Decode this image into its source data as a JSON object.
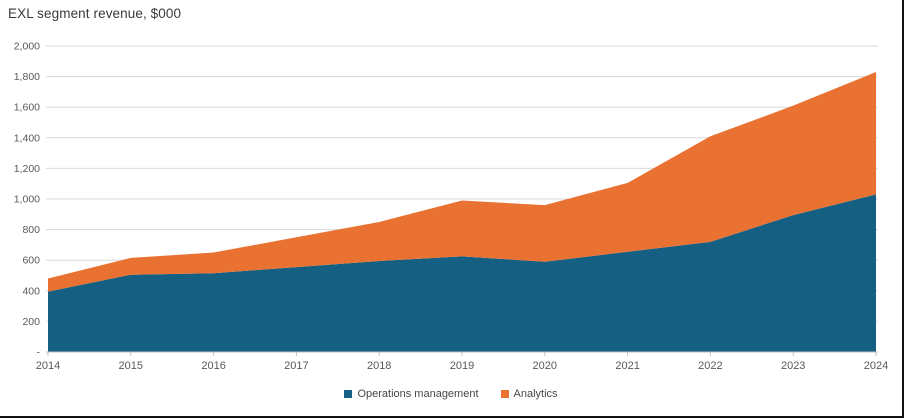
{
  "title": "EXL segment revenue, $000",
  "colors": {
    "operations": "#156082",
    "analytics": "#E97132",
    "gridline": "#D9D9D9",
    "axis_line": "#BFBFBF",
    "tick_label": "#595959",
    "title_text": "#3A3A3A",
    "border": "#111111"
  },
  "chart_data": {
    "type": "area",
    "stacked": true,
    "title": "EXL segment revenue, $000",
    "categories": [
      "2014",
      "2015",
      "2016",
      "2017",
      "2018",
      "2019",
      "2020",
      "2021",
      "2022",
      "2023",
      "2024"
    ],
    "series": [
      {
        "name": "Operations management",
        "color": "#156082",
        "values": [
          395,
          505,
          515,
          555,
          595,
          625,
          590,
          655,
          720,
          895,
          1030
        ]
      },
      {
        "name": "Analytics",
        "color": "#E97132",
        "values": [
          85,
          110,
          135,
          195,
          255,
          365,
          370,
          450,
          690,
          715,
          800
        ]
      }
    ],
    "stacked_totals": [
      480,
      615,
      650,
      750,
      850,
      990,
      960,
      1105,
      1410,
      1610,
      1830
    ],
    "ylim": [
      0,
      2000
    ],
    "ytick_interval": 200,
    "ytick_labels": [
      "-",
      "200",
      "400",
      "600",
      "800",
      "1,000",
      "1,200",
      "1,400",
      "1,600",
      "1,800",
      "2,000"
    ],
    "grid": true,
    "legend_position": "bottom"
  },
  "legend": {
    "items": [
      {
        "label": "Operations management",
        "color": "#156082"
      },
      {
        "label": "Analytics",
        "color": "#E97132"
      }
    ]
  }
}
